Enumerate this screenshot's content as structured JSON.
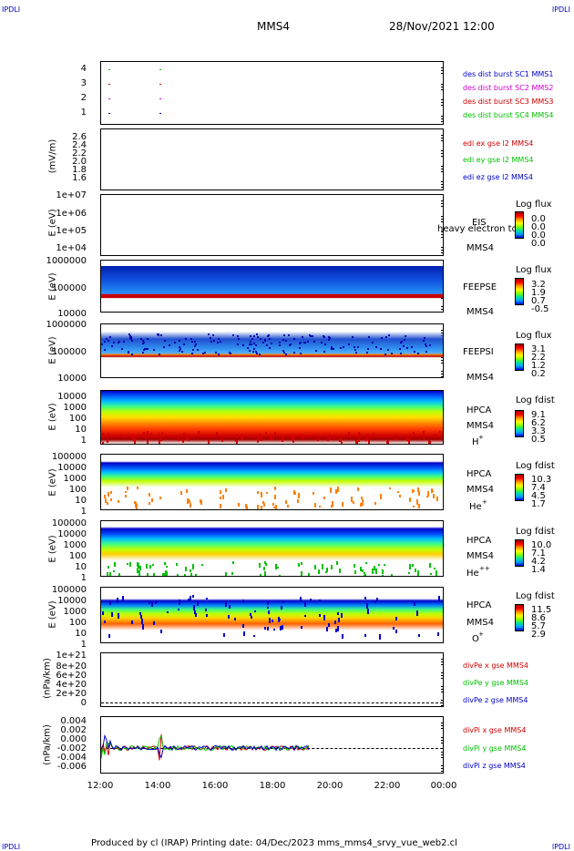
{
  "corners": {
    "tl": "IPDLI",
    "tr": "IPDLI",
    "bl": "IPDLI",
    "br": "IPDLI"
  },
  "header": {
    "title": "MMS4",
    "date": "28/Nov/2021 12:00"
  },
  "footer": "Produced by cl (IRAP)   Printing date: 04/Dec/2023   mms_mms4_srvy_vue_web2.cl",
  "colors": {
    "red": "#d00000",
    "green": "#00c000",
    "blue": "#0000c8",
    "magenta": "#d000d0"
  },
  "chart_data": [
    {
      "type": "scatter",
      "name": "burst",
      "yticks": [
        "4",
        "3",
        "2",
        "1"
      ],
      "legend": [
        {
          "text": "des dist burst SC1 MMS1",
          "color": "#0000c8"
        },
        {
          "text": "des dist burst SC2 MMS2",
          "color": "#d000d0"
        },
        {
          "text": "des dist burst SC3 MMS3",
          "color": "#d00000"
        },
        {
          "text": "des dist burst SC4 MMS4",
          "color": "#00c000"
        }
      ]
    },
    {
      "type": "line",
      "ylabel": "(mV/m)",
      "yticks": [
        "2.6",
        "2.4",
        "2.2",
        "2.0",
        "1.8",
        "1.6"
      ],
      "legend": [
        {
          "text": "edi ex gse l2 MMS4",
          "color": "#d00000"
        },
        {
          "text": "edi ey gse l2 MMS4",
          "color": "#00c000"
        },
        {
          "text": "edi ez gse l2 MMS4",
          "color": "#0000c8"
        }
      ]
    },
    {
      "type": "heatmap",
      "ylabel": "E (eV)",
      "yticks": [
        "1e+07",
        "1e+06",
        "1e+05",
        "1e+04"
      ],
      "labels": [
        "EIS",
        "MMS4"
      ],
      "overlap": "heavy electron to",
      "cbtitle": "Log flux",
      "cbvalues": [
        "0.0",
        "0.0",
        "0.0",
        "0.0"
      ]
    },
    {
      "type": "heatmap",
      "ylabel": "E (eV)",
      "yticks": [
        "1000000",
        "100000",
        "10000"
      ],
      "labels": [
        "FEEPSE",
        "MMS4"
      ],
      "cbtitle": "Log flux",
      "cbvalues": [
        "3.2",
        "1.9",
        "0.7",
        "-0.5"
      ]
    },
    {
      "type": "heatmap",
      "ylabel": "E (eV)",
      "yticks": [
        "1000000",
        "100000",
        "10000"
      ],
      "labels": [
        "FEEPSI",
        "MMS4"
      ],
      "cbtitle": "Log flux",
      "cbvalues": [
        "3.1",
        "2.2",
        "1.2",
        "0.2"
      ]
    },
    {
      "type": "heatmap",
      "ylabel": "E (eV)",
      "yticks": [
        "10000",
        "1000",
        "100",
        "10",
        "1"
      ],
      "labels": [
        "HPCA",
        "MMS4",
        "H"
      ],
      "sup": "+",
      "cbtitle": "Log fdist",
      "cbvalues": [
        "9.1",
        "6.2",
        "3.3",
        "0.5"
      ]
    },
    {
      "type": "heatmap",
      "ylabel": "E (eV)",
      "yticks": [
        "100000",
        "10000",
        "1000",
        "100",
        "10",
        "1"
      ],
      "labels": [
        "HPCA",
        "MMS4",
        "He"
      ],
      "sup": "+",
      "cbtitle": "Log fdist",
      "cbvalues": [
        "10.3",
        "7.4",
        "4.5",
        "1.7"
      ]
    },
    {
      "type": "heatmap",
      "ylabel": "E (eV)",
      "yticks": [
        "100000",
        "10000",
        "1000",
        "100",
        "10",
        "1"
      ],
      "labels": [
        "HPCA",
        "MMS4",
        "He"
      ],
      "sup": "++",
      "cbtitle": "Log fdist",
      "cbvalues": [
        "10.0",
        "7.1",
        "4.2",
        "1.4"
      ]
    },
    {
      "type": "heatmap",
      "ylabel": "E (eV)",
      "yticks": [
        "100000",
        "10000",
        "1000",
        "100",
        "10",
        "1"
      ],
      "labels": [
        "HPCA",
        "MMS4",
        "O"
      ],
      "sup": "+",
      "cbtitle": "Log fdist",
      "cbvalues": [
        "11.5",
        "8.6",
        "5.7",
        "2.9"
      ]
    },
    {
      "type": "line",
      "ylabel": "(nPa/km)",
      "yticks": [
        "1e+21",
        "8e+20",
        "6e+20",
        "4e+20",
        "2e+20",
        "0"
      ],
      "legend": [
        {
          "text": "divPe x gse MMS4",
          "color": "#d00000"
        },
        {
          "text": "divPe y gse MMS4",
          "color": "#00c000"
        },
        {
          "text": "divPe z gse MMS4",
          "color": "#0000c8"
        }
      ]
    },
    {
      "type": "line",
      "ylabel": "(nPa/km)",
      "yticks": [
        "0.004",
        "0.002",
        "0.000",
        "-0.002",
        "-0.004",
        "-0.006"
      ],
      "legend": [
        {
          "text": "divPi x gse MMS4",
          "color": "#d00000"
        },
        {
          "text": "divPi y gse MMS4",
          "color": "#00c000"
        },
        {
          "text": "divPi z gse MMS4",
          "color": "#0000c8"
        }
      ]
    }
  ],
  "xticks": [
    "12:00",
    "14:00",
    "16:00",
    "18:00",
    "20:00",
    "22:00",
    "00:00"
  ]
}
